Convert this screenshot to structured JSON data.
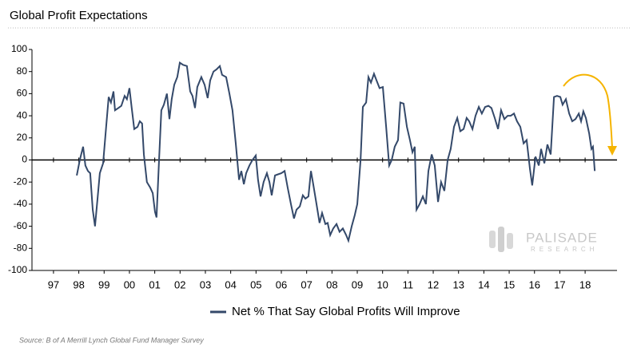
{
  "chart_data": {
    "type": "line",
    "title": "Global Profit Expectations",
    "source": "Source: B of A Merrill Lynch Global Fund Manager Survey",
    "watermark": [
      "PALISADE",
      "RESEARCH"
    ],
    "xlim": [
      1996.15,
      2019.26
    ],
    "ylim": [
      -100,
      100
    ],
    "yticks": [
      -100,
      -80,
      -60,
      -40,
      -20,
      0,
      20,
      40,
      60,
      80,
      100
    ],
    "xticks": [
      {
        "value": 1997,
        "label": "97"
      },
      {
        "value": 1998,
        "label": "98"
      },
      {
        "value": 1999,
        "label": "99"
      },
      {
        "value": 2000,
        "label": "00"
      },
      {
        "value": 2001,
        "label": "01"
      },
      {
        "value": 2002,
        "label": "02"
      },
      {
        "value": 2003,
        "label": "03"
      },
      {
        "value": 2004,
        "label": "04"
      },
      {
        "value": 2005,
        "label": "05"
      },
      {
        "value": 2006,
        "label": "06"
      },
      {
        "value": 2007,
        "label": "07"
      },
      {
        "value": 2008,
        "label": "08"
      },
      {
        "value": 2009,
        "label": "09"
      },
      {
        "value": 2010,
        "label": "10"
      },
      {
        "value": 2011,
        "label": "11"
      },
      {
        "value": 2012,
        "label": "12"
      },
      {
        "value": 2013,
        "label": "13"
      },
      {
        "value": 2014,
        "label": "14"
      },
      {
        "value": 2015,
        "label": "15"
      },
      {
        "value": 2016,
        "label": "16"
      },
      {
        "value": 2017,
        "label": "17"
      },
      {
        "value": 2018,
        "label": "18"
      }
    ],
    "x": [
      1997.92,
      1998.04,
      1998.17,
      1998.26,
      1998.36,
      1998.45,
      1998.55,
      1998.64,
      1998.74,
      1998.83,
      1998.96,
      1999.08,
      1999.18,
      1999.27,
      1999.37,
      1999.43,
      1999.56,
      1999.68,
      1999.81,
      1999.9,
      2000.0,
      2000.09,
      2000.19,
      2000.32,
      2000.41,
      2000.5,
      2000.57,
      2000.69,
      2000.82,
      2000.92,
      2001.01,
      2001.07,
      2001.17,
      2001.26,
      2001.36,
      2001.48,
      2001.58,
      2001.67,
      2001.77,
      2001.89,
      2001.99,
      2002.12,
      2002.27,
      2002.4,
      2002.49,
      2002.59,
      2002.68,
      2002.84,
      2002.97,
      2003.09,
      2003.19,
      2003.32,
      2003.44,
      2003.57,
      2003.66,
      2003.82,
      2003.95,
      2004.07,
      2004.2,
      2004.33,
      2004.42,
      2004.52,
      2004.61,
      2004.74,
      2004.86,
      2004.99,
      2005.08,
      2005.18,
      2005.3,
      2005.43,
      2005.53,
      2005.62,
      2005.75,
      2005.87,
      2006.0,
      2006.13,
      2006.25,
      2006.38,
      2006.5,
      2006.6,
      2006.73,
      2006.85,
      2006.95,
      2007.07,
      2007.17,
      2007.26,
      2007.39,
      2007.51,
      2007.61,
      2007.74,
      2007.83,
      2007.93,
      2008.05,
      2008.18,
      2008.3,
      2008.43,
      2008.56,
      2008.65,
      2008.78,
      2008.9,
      2009.0,
      2009.13,
      2009.22,
      2009.35,
      2009.44,
      2009.54,
      2009.66,
      2009.76,
      2009.88,
      2010.01,
      2010.14,
      2010.26,
      2010.36,
      2010.48,
      2010.61,
      2010.7,
      2010.83,
      2010.96,
      2011.08,
      2011.18,
      2011.27,
      2011.34,
      2011.46,
      2011.59,
      2011.71,
      2011.81,
      2011.94,
      2012.06,
      2012.19,
      2012.31,
      2012.44,
      2012.57,
      2012.69,
      2012.82,
      2012.95,
      2013.07,
      2013.2,
      2013.32,
      2013.42,
      2013.55,
      2013.67,
      2013.8,
      2013.92,
      2014.05,
      2014.18,
      2014.3,
      2014.43,
      2014.56,
      2014.68,
      2014.81,
      2014.94,
      2015.06,
      2015.19,
      2015.31,
      2015.44,
      2015.57,
      2015.69,
      2015.82,
      2015.91,
      2016.04,
      2016.17,
      2016.26,
      2016.39,
      2016.51,
      2016.64,
      2016.77,
      2016.89,
      2017.02,
      2017.11,
      2017.24,
      2017.37,
      2017.49,
      2017.62,
      2017.75,
      2017.84,
      2017.93,
      2018.03,
      2018.16,
      2018.25,
      2018.31,
      2018.38
    ],
    "series": [
      {
        "name": "Net % That Say Global Profits Will Improve",
        "color": "#34496a",
        "values": [
          -14,
          0,
          12,
          -5,
          -10,
          -12,
          -45,
          -60,
          -35,
          -12,
          -3,
          30,
          57,
          52,
          62,
          45,
          47,
          49,
          58,
          55,
          65,
          47,
          28,
          30,
          35,
          33,
          5,
          -20,
          -25,
          -30,
          -47,
          -52,
          0,
          45,
          50,
          60,
          37,
          55,
          68,
          75,
          88,
          86,
          85,
          62,
          58,
          47,
          66,
          75,
          68,
          56,
          72,
          80,
          82,
          85,
          77,
          75,
          60,
          45,
          15,
          -18,
          -10,
          -22,
          -12,
          -5,
          0,
          4,
          -18,
          -33,
          -20,
          -12,
          -20,
          -32,
          -14,
          -13,
          -12,
          -10,
          -25,
          -40,
          -53,
          -45,
          -42,
          -32,
          -35,
          -33,
          -10,
          -22,
          -40,
          -57,
          -48,
          -58,
          -57,
          -68,
          -62,
          -58,
          -65,
          -62,
          -68,
          -73,
          -60,
          -50,
          -40,
          0,
          48,
          52,
          75,
          70,
          78,
          72,
          65,
          66,
          30,
          -5,
          0,
          12,
          18,
          52,
          51,
          30,
          18,
          7,
          12,
          -45,
          -40,
          -33,
          -40,
          -10,
          5,
          -5,
          -38,
          -20,
          -28,
          0,
          10,
          30,
          38,
          26,
          28,
          38,
          35,
          28,
          40,
          48,
          42,
          48,
          49,
          47,
          38,
          28,
          45,
          37,
          40,
          40,
          42,
          35,
          30,
          15,
          18,
          -8,
          -23,
          3,
          -5,
          10,
          -3,
          14,
          5,
          57,
          58,
          57,
          50,
          55,
          42,
          35,
          37,
          42,
          35,
          44,
          38,
          24,
          10,
          12,
          -10
        ]
      }
    ]
  }
}
